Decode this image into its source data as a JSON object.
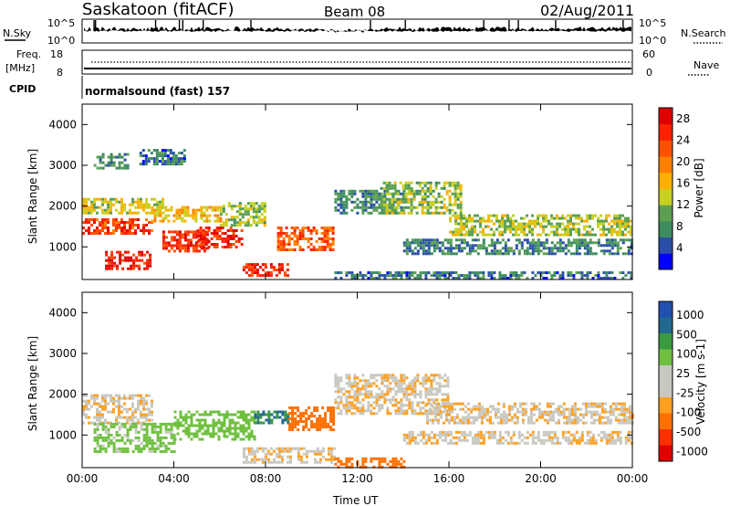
{
  "header": {
    "site": "Saskatoon (fitACF)",
    "beam": "Beam 08",
    "date": "02/Aug/2011"
  },
  "strips": {
    "nsky": {
      "label": "N.Sky",
      "ticks": [
        "10^5",
        "10^0"
      ]
    },
    "nsearch": {
      "label": "N.Search",
      "ticks": [
        "10^5",
        "10^0"
      ]
    },
    "freq": {
      "label_line1": "Freq.",
      "label_line2": "[MHz]",
      "ticks": [
        "18",
        "8"
      ]
    },
    "nave": {
      "label": "Nave",
      "ticks": [
        "60",
        "0"
      ]
    },
    "cpid": {
      "label": "CPID",
      "value": "normalsound (fast) 157"
    }
  },
  "colors": {
    "power": [
      "#0000ff",
      "#2a4ea8",
      "#3c8c5e",
      "#5aa050",
      "#c8d020",
      "#ffb000",
      "#ff8000",
      "#ff5000",
      "#ff2000",
      "#e00000"
    ],
    "velocity": [
      "#2050b0",
      "#206890",
      "#3a9a40",
      "#70c040",
      "#c8c8c0",
      "#c8c8c0",
      "#ffa020",
      "#ff7000",
      "#ff3000",
      "#e00000"
    ]
  },
  "chart_data": [
    {
      "type": "heatmap",
      "panel": "power",
      "ylabel": "Slant Range [km]",
      "xlabel": "Time UT",
      "x_ticks": [
        "00:00",
        "04:00",
        "08:00",
        "12:00",
        "16:00",
        "20:00",
        "00:00"
      ],
      "xlim_hours": [
        0,
        24
      ],
      "y_ticks": [
        "1000",
        "2000",
        "3000",
        "4000"
      ],
      "ylim": [
        200,
        4500
      ],
      "colorbar": {
        "label": "Power [dB]",
        "ticks": [
          "4",
          "8",
          "12",
          "16",
          "20",
          "24",
          "28"
        ],
        "range": [
          0,
          30
        ]
      },
      "regions": [
        {
          "t": [
            0.0,
            3.0
          ],
          "r": [
            1300,
            1700
          ],
          "v": 24
        },
        {
          "t": [
            0.0,
            3.5
          ],
          "r": [
            1800,
            2200
          ],
          "v": 14
        },
        {
          "t": [
            1.0,
            3.0
          ],
          "r": [
            450,
            900
          ],
          "v": 26
        },
        {
          "t": [
            3.0,
            6.0
          ],
          "r": [
            1600,
            2000
          ],
          "v": 16
        },
        {
          "t": [
            3.5,
            5.5
          ],
          "r": [
            900,
            1400
          ],
          "v": 25
        },
        {
          "t": [
            5.0,
            7.0
          ],
          "r": [
            1000,
            1500
          ],
          "v": 26
        },
        {
          "t": [
            6.0,
            8.0
          ],
          "r": [
            1500,
            2100
          ],
          "v": 12
        },
        {
          "t": [
            7.0,
            9.0
          ],
          "r": [
            300,
            600
          ],
          "v": 25
        },
        {
          "t": [
            8.5,
            11.0
          ],
          "r": [
            900,
            1500
          ],
          "v": 22
        },
        {
          "t": [
            0.5,
            2.0
          ],
          "r": [
            2900,
            3300
          ],
          "v": 8
        },
        {
          "t": [
            2.5,
            4.5
          ],
          "r": [
            3000,
            3400
          ],
          "v": 6
        },
        {
          "t": [
            11.0,
            14.0
          ],
          "r": [
            1800,
            2400
          ],
          "v": 8
        },
        {
          "t": [
            13.0,
            16.5
          ],
          "r": [
            1800,
            2600
          ],
          "v": 12
        },
        {
          "t": [
            16.0,
            24.0
          ],
          "r": [
            1300,
            1800
          ],
          "v": 13
        },
        {
          "t": [
            14.0,
            24.0
          ],
          "r": [
            800,
            1200
          ],
          "v": 7
        },
        {
          "t": [
            11.0,
            24.0
          ],
          "r": [
            220,
            400
          ],
          "v": 6
        }
      ]
    },
    {
      "type": "heatmap",
      "panel": "velocity",
      "ylabel": "Slant Range [km]",
      "xlabel": "Time UT",
      "x_ticks": [
        "00:00",
        "04:00",
        "08:00",
        "12:00",
        "16:00",
        "20:00",
        "00:00"
      ],
      "xlim_hours": [
        0,
        24
      ],
      "y_ticks": [
        "1000",
        "2000",
        "3000",
        "4000"
      ],
      "ylim": [
        200,
        4500
      ],
      "colorbar": {
        "label": "Velocity [m s-1]",
        "ticks": [
          "1000",
          "500",
          "100",
          "25",
          "-25",
          "-100",
          "-500",
          "-1000"
        ]
      },
      "regions": [
        {
          "t": [
            0.0,
            3.0
          ],
          "r": [
            1300,
            2000
          ],
          "v": 0
        },
        {
          "t": [
            0.5,
            4.0
          ],
          "r": [
            600,
            1300
          ],
          "v": 150
        },
        {
          "t": [
            4.0,
            7.5
          ],
          "r": [
            900,
            1600
          ],
          "v": 200
        },
        {
          "t": [
            7.5,
            9.0
          ],
          "r": [
            1300,
            1600
          ],
          "v": 500
        },
        {
          "t": [
            9.0,
            11.0
          ],
          "r": [
            1100,
            1700
          ],
          "v": -200
        },
        {
          "t": [
            7.0,
            11.0
          ],
          "r": [
            300,
            700
          ],
          "v": 0
        },
        {
          "t": [
            11.0,
            16.0
          ],
          "r": [
            1500,
            2500
          ],
          "v": 0
        },
        {
          "t": [
            15.0,
            24.0
          ],
          "r": [
            1300,
            1800
          ],
          "v": 0
        },
        {
          "t": [
            14.0,
            24.0
          ],
          "r": [
            800,
            1100
          ],
          "v": 0
        },
        {
          "t": [
            11.0,
            14.0
          ],
          "r": [
            220,
            450
          ],
          "v": -200
        }
      ]
    }
  ]
}
